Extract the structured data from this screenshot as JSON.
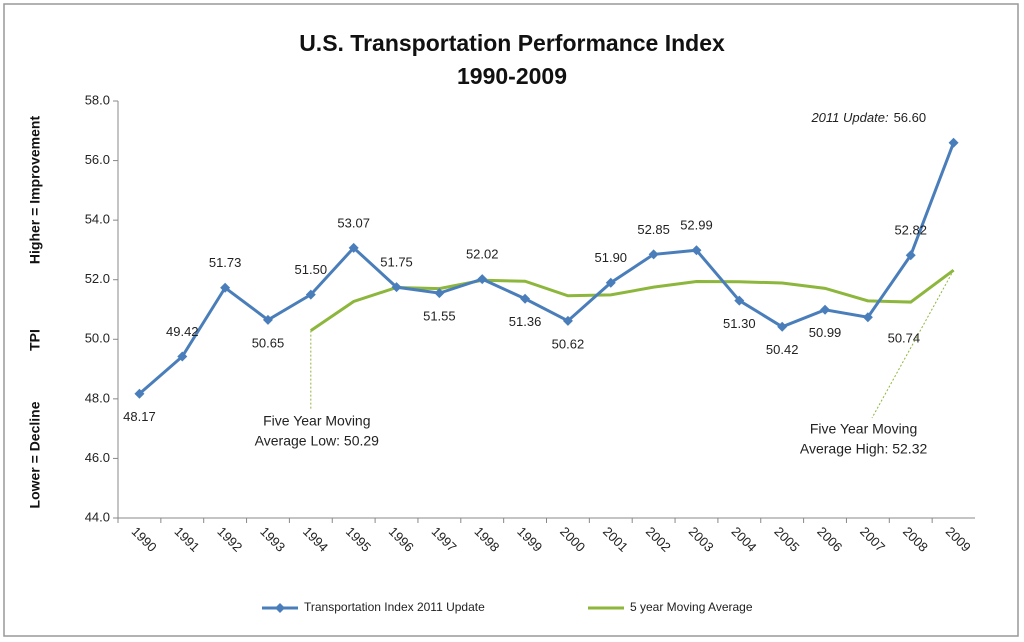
{
  "chart_data": {
    "type": "line",
    "title": [
      "U.S. Transportation Performance Index",
      "1990-2009"
    ],
    "y_label": [
      "Higher = Improvement",
      "TPI",
      "Lower = Decline"
    ],
    "categories": [
      "1990",
      "1991",
      "1992",
      "1993",
      "1994",
      "1995",
      "1996",
      "1997",
      "1998",
      "1999",
      "2000",
      "2001",
      "2002",
      "2003",
      "2004",
      "2005",
      "2006",
      "2007",
      "2008",
      "2009"
    ],
    "series": [
      {
        "name": "Transportation Index 2011 Update",
        "color": "#4a7ebb",
        "values": [
          48.17,
          49.42,
          51.73,
          50.65,
          51.5,
          53.07,
          51.75,
          51.55,
          52.02,
          51.36,
          50.62,
          51.9,
          52.85,
          52.99,
          51.3,
          50.42,
          50.99,
          50.74,
          52.82,
          56.6
        ],
        "value_labels": [
          "48.17",
          "49.42",
          "51.73",
          "50.65",
          "51.50",
          "53.07",
          "51.75",
          "51.55",
          "52.02",
          "51.36",
          "50.62",
          "51.90",
          "52.85",
          "52.99",
          "51.30",
          "50.42",
          "50.99",
          "50.74",
          "52.82",
          "56.60"
        ]
      },
      {
        "name": "5 year Moving Average",
        "color": "#8db63c",
        "values": [
          null,
          null,
          null,
          null,
          50.29,
          51.27,
          51.74,
          51.7,
          51.98,
          51.95,
          51.46,
          51.49,
          51.75,
          51.94,
          51.93,
          51.89,
          51.71,
          51.29,
          51.25,
          52.32
        ]
      }
    ],
    "annotations": [
      {
        "lines": [
          "Five Year Moving",
          "Average Low:  50.29"
        ]
      },
      {
        "lines": [
          "Five Year Moving",
          "Average High:  52.32"
        ]
      },
      {
        "text": "2011 Update:"
      }
    ],
    "ylim": [
      44,
      58
    ],
    "yticks": [
      {
        "value": 44,
        "label": "44.0"
      },
      {
        "value": 46,
        "label": "46.0"
      },
      {
        "value": 48,
        "label": "48.0"
      },
      {
        "value": 50,
        "label": "50.0"
      },
      {
        "value": 52,
        "label": "52.0"
      },
      {
        "value": 54,
        "label": "54.0"
      },
      {
        "value": 56,
        "label": "56.0"
      },
      {
        "value": 58,
        "label": "58.0"
      }
    ],
    "grid": false,
    "legend": "bottom"
  }
}
